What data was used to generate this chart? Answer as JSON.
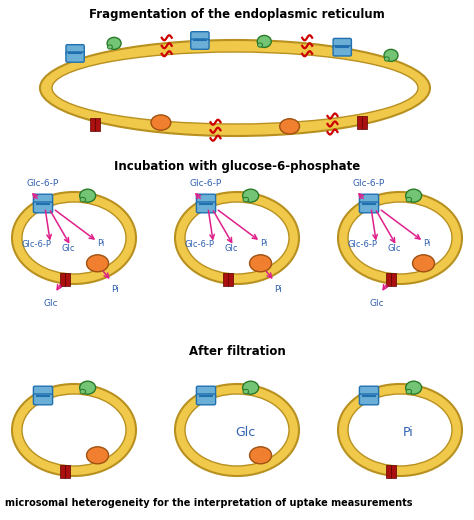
{
  "title1": "Fragmentation of the endoplasmic reticulum",
  "title2": "Incubation with glucose-6-phosphate",
  "title3": "After filtration",
  "footer": "microsomal heterogeneity for the interpretation of uptake measurements",
  "colors": {
    "membrane": "#F0C84A",
    "membrane_edge": "#B89020",
    "blue_protein": "#6BAED6",
    "blue_edge": "#2070B0",
    "green_protein": "#74C476",
    "green_edge": "#2A7A2A",
    "orange_dot": "#F08030",
    "orange_edge": "#A05010",
    "red_mark": "#AA1010",
    "red_edge": "#600000",
    "arrow": "#E0208A",
    "label": "#3060B0",
    "cut_mark": "#CC0000",
    "background": "#FFFFFF"
  }
}
